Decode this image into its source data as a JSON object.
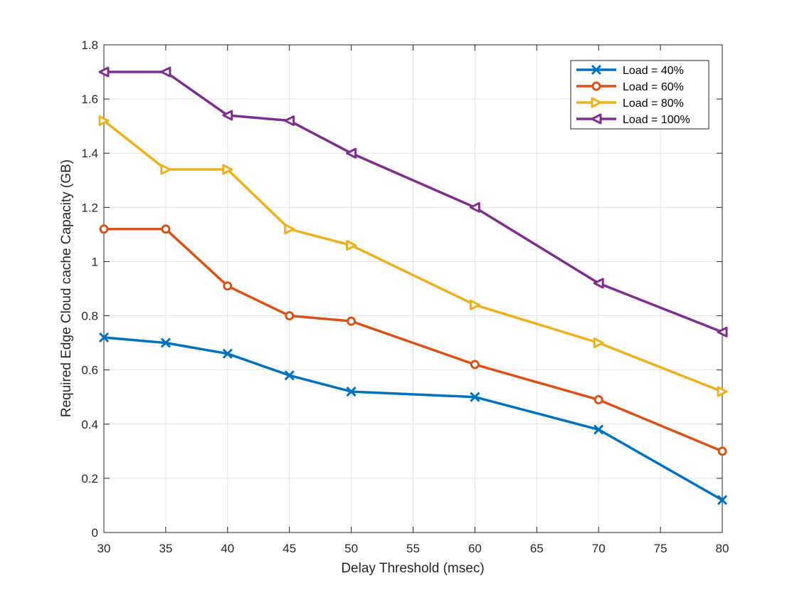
{
  "chart_data": {
    "type": "line",
    "xlabel": "Delay Threshold (msec)",
    "ylabel": "Required Edge Cloud cache Capacity (GB)",
    "xlim": [
      30,
      80
    ],
    "ylim": [
      0,
      1.8
    ],
    "xticks": [
      "30",
      "35",
      "40",
      "45",
      "50",
      "55",
      "60",
      "65",
      "70",
      "75",
      "80"
    ],
    "yticks": [
      "0",
      "0.2",
      "0.4",
      "0.6",
      "0.8",
      "1",
      "1.2",
      "1.4",
      "1.6",
      "1.8"
    ],
    "grid": true,
    "legend_position": "top-right",
    "x": [
      30,
      35,
      40,
      45,
      50,
      60,
      70,
      80
    ],
    "series": [
      {
        "name": "Load = 40%",
        "color": "#0072BD",
        "marker": "x-icon",
        "values": [
          0.72,
          0.7,
          0.66,
          0.58,
          0.52,
          0.5,
          0.38,
          0.12
        ]
      },
      {
        "name": "Load = 60%",
        "color": "#D95319",
        "marker": "circle-icon",
        "values": [
          1.12,
          1.12,
          0.91,
          0.8,
          0.78,
          0.62,
          0.49,
          0.3
        ]
      },
      {
        "name": "Load = 80%",
        "color": "#EDB120",
        "marker": "triangle-right-icon",
        "values": [
          1.52,
          1.34,
          1.34,
          1.12,
          1.06,
          0.84,
          0.7,
          0.52
        ]
      },
      {
        "name": "Load = 100%",
        "color": "#7E2F8E",
        "marker": "triangle-left-icon",
        "values": [
          1.7,
          1.7,
          1.54,
          1.52,
          1.4,
          1.2,
          0.92,
          0.74
        ]
      }
    ]
  }
}
